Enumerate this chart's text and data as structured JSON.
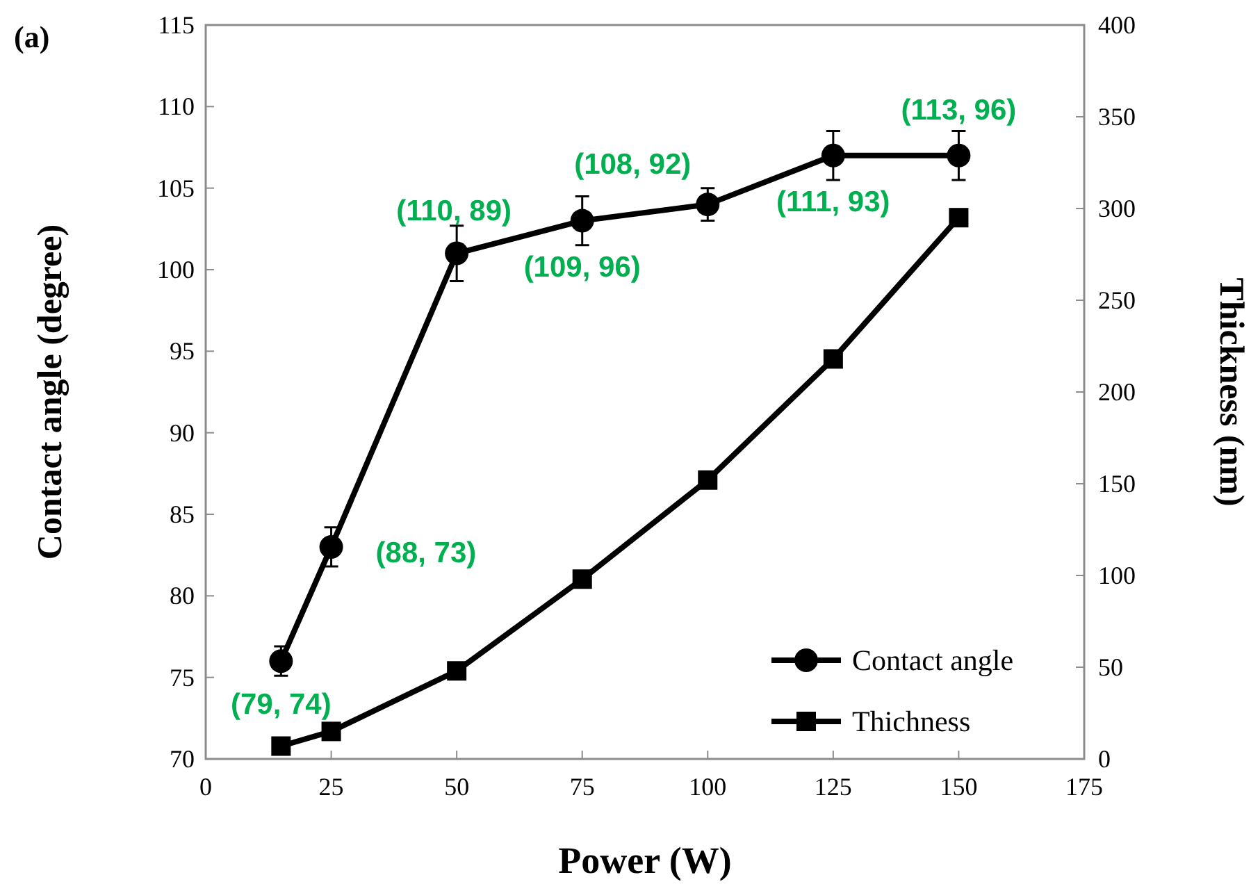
{
  "chart_data": {
    "type": "line",
    "xlabel": "Power (W)",
    "ylabel": "Contact angle (degree)",
    "y2label": "Thickness (nm)",
    "x": [
      15,
      25,
      50,
      75,
      100,
      125,
      150
    ],
    "series": [
      {
        "name": "Contact angle",
        "color": "#000000",
        "marker": "circle",
        "values": [
          76,
          83,
          101,
          103,
          104,
          107,
          107
        ],
        "errors": [
          0.9,
          1.2,
          1.7,
          1.5,
          1,
          1.5,
          1.5
        ]
      },
      {
        "name": "Thichness",
        "color": "#000000",
        "marker": "square",
        "axis": "y2",
        "values": [
          7,
          15,
          48,
          98,
          152,
          218,
          295
        ]
      }
    ],
    "xlim": [
      0,
      175
    ],
    "xticks": [
      0,
      25,
      50,
      75,
      100,
      125,
      150,
      175
    ],
    "ylim": [
      70,
      115
    ],
    "yticks": [
      70,
      75,
      80,
      85,
      90,
      95,
      100,
      105,
      110,
      115
    ],
    "y2lim": [
      0,
      400
    ],
    "y2ticks": [
      0,
      50,
      100,
      150,
      200,
      250,
      300,
      350,
      400
    ],
    "grid": false,
    "legend": "bottom right",
    "line_style": "solid",
    "annotations": [
      "(a)",
      {
        "text": "(79, 74)",
        "x": 15,
        "y": 76
      },
      {
        "text": "(88, 73)",
        "x": 25,
        "y": 83
      },
      {
        "text": "(110, 89)",
        "x": 50,
        "y": 101
      },
      {
        "text": "(109, 96)",
        "x": 75,
        "y": 103
      },
      {
        "text": "(108, 92)",
        "x": 100,
        "y": 104
      },
      {
        "text": "(111, 93)",
        "x": 125,
        "y": 107
      },
      {
        "text": "(113, 96)",
        "x": 150,
        "y": 107
      }
    ]
  }
}
